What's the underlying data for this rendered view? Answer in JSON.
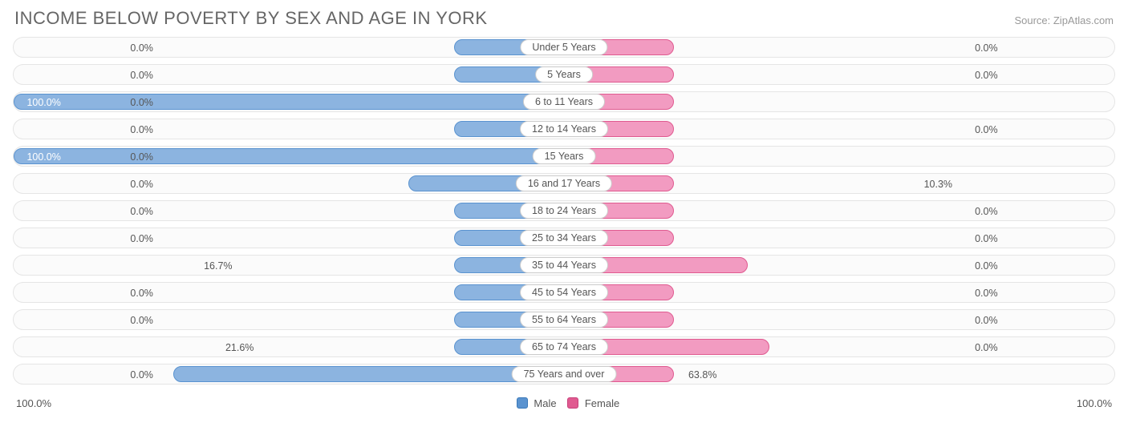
{
  "header": {
    "title": "INCOME BELOW POVERTY BY SEX AND AGE IN YORK",
    "source": "Source: ZipAtlas.com"
  },
  "chart": {
    "type": "bar",
    "orientation": "horizontal-diverging",
    "background_color": "#ffffff",
    "row_bg": "#fbfbfb",
    "row_border": "#e5e5e5",
    "male_fill": "#8cb4e0",
    "male_stroke": "#5a93d0",
    "female_fill": "#f29bc1",
    "female_stroke": "#e05a90",
    "label_text_color": "#555555",
    "min_bar_pct": 10.0,
    "max_bar_pct": 50.0,
    "center_label_min_width_pct": 9.0,
    "value_decimals": 1,
    "font_size_row": 12.5,
    "rows": [
      {
        "label": "Under 5 Years",
        "male": 0.0,
        "female": 0.0
      },
      {
        "label": "5 Years",
        "male": 0.0,
        "female": 0.0
      },
      {
        "label": "6 to 11 Years",
        "male": 100.0,
        "female": 0.0
      },
      {
        "label": "12 to 14 Years",
        "male": 0.0,
        "female": 0.0
      },
      {
        "label": "15 Years",
        "male": 100.0,
        "female": 0.0
      },
      {
        "label": "16 and 17 Years",
        "male": 10.3,
        "female": 0.0
      },
      {
        "label": "18 to 24 Years",
        "male": 0.0,
        "female": 0.0
      },
      {
        "label": "25 to 34 Years",
        "male": 0.0,
        "female": 0.0
      },
      {
        "label": "35 to 44 Years",
        "male": 0.0,
        "female": 16.7
      },
      {
        "label": "45 to 54 Years",
        "male": 0.0,
        "female": 0.0
      },
      {
        "label": "55 to 64 Years",
        "male": 0.0,
        "female": 0.0
      },
      {
        "label": "65 to 74 Years",
        "male": 0.0,
        "female": 21.6
      },
      {
        "label": "75 Years and over",
        "male": 63.8,
        "female": 0.0
      }
    ]
  },
  "footer": {
    "axis_left": "100.0%",
    "axis_right": "100.0%",
    "legend_male": "Male",
    "legend_female": "Female"
  }
}
